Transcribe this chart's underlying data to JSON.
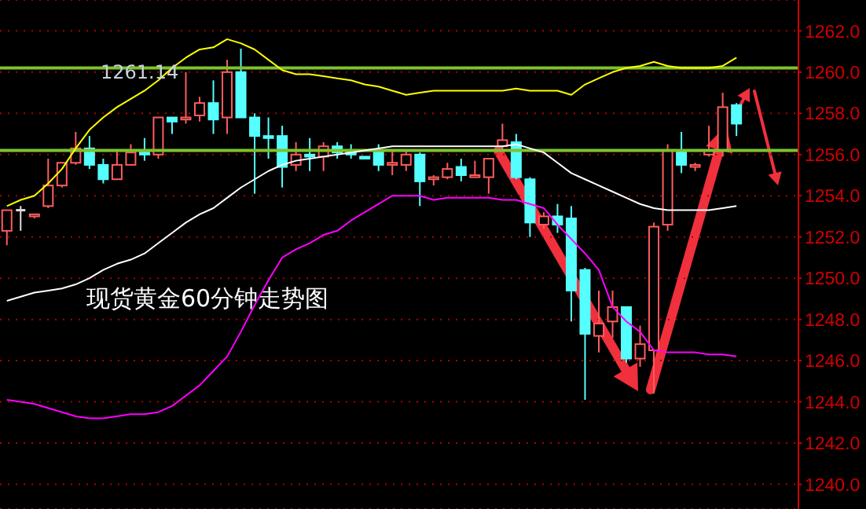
{
  "chart_data": {
    "type": "candlestick",
    "title": "现货黄金60分钟走势图",
    "categories": [
      null,
      null,
      null,
      null,
      null,
      null,
      null,
      null,
      null,
      null,
      null,
      null,
      null,
      null,
      null,
      null,
      null,
      null,
      null,
      null,
      null,
      null,
      null,
      null,
      null,
      null,
      null,
      null,
      null,
      null,
      null,
      null,
      null,
      null,
      null,
      null,
      null,
      null,
      null,
      null,
      null,
      null,
      null,
      null,
      null,
      null,
      null,
      null,
      null,
      null,
      null,
      null,
      null,
      null,
      null,
      null,
      null,
      null
    ],
    "ohlc": [
      [
        1252.3,
        1253.3,
        1251.6,
        1253.3
      ],
      [
        1253.3,
        1253.5,
        1252.3,
        1253.3
      ],
      [
        1253.0,
        1253.1,
        1252.9,
        1253.1
      ],
      [
        1253.5,
        1255.8,
        1253.4,
        1254.5
      ],
      [
        1254.5,
        1255.6,
        1254.4,
        1255.6
      ],
      [
        1255.6,
        1257.1,
        1255.5,
        1256.3
      ],
      [
        1256.3,
        1256.9,
        1255.3,
        1255.5
      ],
      [
        1255.5,
        1255.8,
        1254.6,
        1254.8
      ],
      [
        1254.8,
        1256.2,
        1254.8,
        1255.5
      ],
      [
        1255.5,
        1256.5,
        1255.5,
        1256.1
      ],
      [
        1256.1,
        1256.8,
        1255.7,
        1256.0
      ],
      [
        1256.0,
        1257.8,
        1255.8,
        1257.8
      ],
      [
        1257.8,
        1257.8,
        1257.0,
        1257.6
      ],
      [
        1257.7,
        1260.0,
        1257.5,
        1257.8
      ],
      [
        1257.9,
        1258.8,
        1257.6,
        1258.5
      ],
      [
        1258.5,
        1259.6,
        1257.0,
        1257.7
      ],
      [
        1257.8,
        1260.6,
        1257.0,
        1260.0
      ],
      [
        1260.0,
        1261.14,
        1257.8,
        1257.8
      ],
      [
        1257.8,
        1258.0,
        1254.1,
        1256.9
      ],
      [
        1256.9,
        1257.8,
        1255.8,
        1256.8
      ],
      [
        1256.9,
        1257.4,
        1254.4,
        1255.4
      ],
      [
        1255.5,
        1256.6,
        1255.2,
        1256.0
      ],
      [
        1256.0,
        1256.8,
        1255.2,
        1255.9
      ],
      [
        1255.9,
        1256.6,
        1255.2,
        1256.4
      ],
      [
        1256.4,
        1256.6,
        1255.8,
        1256.1
      ],
      [
        1256.2,
        1256.5,
        1255.8,
        1256.0
      ],
      [
        1255.9,
        1255.9,
        1255.8,
        1255.8
      ],
      [
        1256.1,
        1256.5,
        1255.2,
        1255.5
      ],
      [
        1255.5,
        1256.2,
        1255.0,
        1255.6
      ],
      [
        1255.5,
        1256.2,
        1255.2,
        1256.0
      ],
      [
        1256.0,
        1256.1,
        1253.5,
        1254.7
      ],
      [
        1254.8,
        1255.0,
        1254.5,
        1254.9
      ],
      [
        1254.9,
        1255.6,
        1254.8,
        1255.3
      ],
      [
        1255.4,
        1255.8,
        1254.7,
        1255.0
      ],
      [
        1254.9,
        1255.7,
        1254.9,
        1255.0
      ],
      [
        1254.9,
        1255.8,
        1254.1,
        1255.8
      ],
      [
        1256.4,
        1257.5,
        1256.2,
        1256.7
      ],
      [
        1256.6,
        1257.0,
        1254.8,
        1254.9
      ],
      [
        1254.8,
        1254.9,
        1252.0,
        1252.7
      ],
      [
        1252.6,
        1253.2,
        1252.4,
        1253.0
      ],
      [
        1253.0,
        1253.6,
        1252.2,
        1252.6
      ],
      [
        1252.9,
        1253.5,
        1247.9,
        1249.4
      ],
      [
        1250.4,
        1250.5,
        1244.1,
        1247.3
      ],
      [
        1247.2,
        1249.4,
        1246.4,
        1247.8
      ],
      [
        1247.9,
        1249.4,
        1247.1,
        1248.6
      ],
      [
        1248.6,
        1248.6,
        1245.9,
        1246.1
      ],
      [
        1246.1,
        1247.7,
        1245.7,
        1246.8
      ],
      [
        1246.5,
        1252.7,
        1244.4,
        1252.5
      ],
      [
        1252.6,
        1256.5,
        1252.3,
        1256.2
      ],
      [
        1256.2,
        1257.1,
        1255.1,
        1255.5
      ],
      [
        1255.4,
        1255.6,
        1255.2,
        1255.5
      ],
      [
        1256.0,
        1257.4,
        1255.9,
        1256.2
      ],
      [
        1256.2,
        1259.0,
        1255.9,
        1258.3
      ],
      [
        1258.4,
        1258.5,
        1256.9,
        1257.5
      ],
      null,
      null,
      null,
      null
    ],
    "colors": [
      "#ff5c5c",
      "#dddddd",
      "#ff5c5c",
      "#ff5c5c",
      "#ff5c5c",
      "#ff5c5c",
      "#55ffff",
      "#55ffff",
      "#ff5c5c",
      "#ff5c5c",
      "#55ffff",
      "#ff5c5c",
      "#55ffff",
      "#ff5c5c",
      "#ff5c5c",
      "#55ffff",
      "#ff5c5c",
      "#55ffff",
      "#55ffff",
      "#55ffff",
      "#55ffff",
      "#ff5c5c",
      "#55ffff",
      "#ff5c5c",
      "#55ffff",
      "#55ffff",
      "#55ffff",
      "#55ffff",
      "#ff5c5c",
      "#ff5c5c",
      "#55ffff",
      "#ff5c5c",
      "#ff5c5c",
      "#55ffff",
      "#ff5c5c",
      "#ff5c5c",
      "#ff5c5c",
      "#55ffff",
      "#55ffff",
      "#ff5c5c",
      "#55ffff",
      "#55ffff",
      "#55ffff",
      "#ff5c5c",
      "#ff5c5c",
      "#55ffff",
      "#ff5c5c",
      "#ff5c5c",
      "#ff5c5c",
      "#55ffff",
      "#ff5c5c",
      "#ff5c5c",
      "#ff5c5c",
      "#55ffff",
      null,
      null,
      null,
      null
    ],
    "series": [
      {
        "type": "line",
        "color": "#ffff00",
        "values": [
          1253.5,
          1253.8,
          1254.0,
          1254.6,
          1255.3,
          1256.3,
          1257.2,
          1257.8,
          1258.3,
          1258.7,
          1259.1,
          1259.6,
          1260.2,
          1260.7,
          1261.1,
          1261.2,
          1261.6,
          1261.4,
          1261.1,
          1260.6,
          1260.1,
          1259.9,
          1259.9,
          1259.8,
          1259.7,
          1259.6,
          1259.4,
          1259.3,
          1259.1,
          1258.9,
          1259.0,
          1259.1,
          1259.1,
          1259.1,
          1259.1,
          1259.1,
          1259.1,
          1259.2,
          1259.1,
          1259.1,
          1259.1,
          1258.9,
          1259.4,
          1259.7,
          1260.0,
          1260.2,
          1260.3,
          1260.5,
          1260.3,
          1260.2,
          1260.2,
          1260.2,
          1260.3,
          1260.7,
          null,
          null,
          null,
          null
        ]
      },
      {
        "type": "line",
        "color": "#ffffff",
        "values": [
          1248.9,
          1249.1,
          1249.3,
          1249.4,
          1249.5,
          1249.7,
          1250.0,
          1250.4,
          1250.7,
          1250.9,
          1251.2,
          1251.7,
          1252.2,
          1252.7,
          1253.1,
          1253.4,
          1253.9,
          1254.4,
          1254.8,
          1255.2,
          1255.5,
          1255.7,
          1255.8,
          1255.9,
          1256.0,
          1256.1,
          1256.2,
          1256.3,
          1256.4,
          1256.4,
          1256.4,
          1256.4,
          1256.4,
          1256.4,
          1256.4,
          1256.4,
          1256.4,
          1256.5,
          1256.3,
          1256.1,
          1255.6,
          1255.1,
          1254.8,
          1254.5,
          1254.2,
          1253.9,
          1253.6,
          1253.4,
          1253.3,
          1253.3,
          1253.3,
          1253.3,
          1253.4,
          1253.5,
          null,
          null,
          null,
          null
        ]
      },
      {
        "type": "line",
        "color": "#ff00ff",
        "values": [
          1244.1,
          1244.0,
          1243.9,
          1243.7,
          1243.5,
          1243.3,
          1243.2,
          1243.2,
          1243.3,
          1243.4,
          1243.4,
          1243.5,
          1243.8,
          1244.3,
          1244.8,
          1245.5,
          1246.2,
          1247.4,
          1248.7,
          1249.9,
          1251.0,
          1251.4,
          1251.7,
          1252.1,
          1252.3,
          1252.8,
          1253.2,
          1253.6,
          1254.0,
          1254.0,
          1254.0,
          1253.8,
          1253.9,
          1253.9,
          1253.9,
          1253.9,
          1253.8,
          1253.8,
          1253.6,
          1253.4,
          1252.6,
          1251.9,
          1251.2,
          1250.4,
          1248.6,
          1247.9,
          1247.4,
          1246.5,
          1246.4,
          1246.4,
          1246.4,
          1246.3,
          1246.3,
          1246.2,
          null,
          null,
          null,
          null
        ]
      }
    ],
    "ylim": [
      1238.8,
      1263.5
    ],
    "yticks": [
      {
        "value": 1240,
        "label": "1240.0"
      },
      {
        "value": 1242,
        "label": "1242.0"
      },
      {
        "value": 1244,
        "label": "1244.0"
      },
      {
        "value": 1246,
        "label": "1246.0"
      },
      {
        "value": 1248,
        "label": "1248.0"
      },
      {
        "value": 1250,
        "label": "1250.0"
      },
      {
        "value": 1252,
        "label": "1252.0"
      },
      {
        "value": 1254,
        "label": "1254.0"
      },
      {
        "value": 1256,
        "label": "1256.0"
      },
      {
        "value": 1258,
        "label": "1258.0"
      },
      {
        "value": 1260,
        "label": "1260.0"
      },
      {
        "value": 1262,
        "label": "1262.0"
      }
    ],
    "tick_labels": "y",
    "grid": "y",
    "ref_lines": [
      {
        "axis": "y",
        "value": 1260.2,
        "color": "#7dc22c"
      },
      {
        "axis": "y",
        "value": 1256.2,
        "color": "#7dc22c"
      }
    ],
    "annotations": [
      "1261.14"
    ]
  }
}
